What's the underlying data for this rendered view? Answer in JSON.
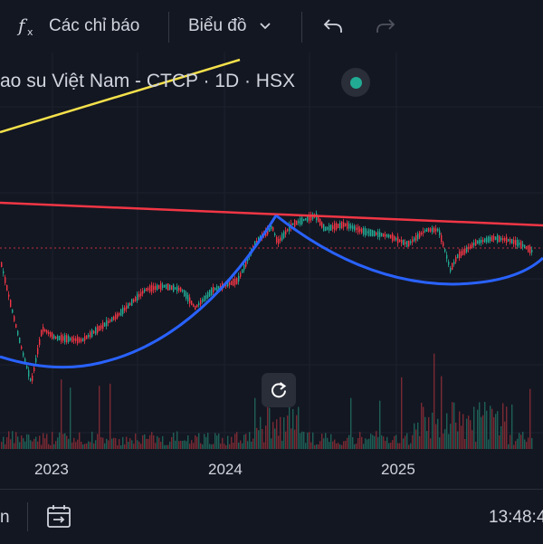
{
  "toolbar": {
    "indicators_icon": "fx-icon",
    "indicators_label": "Các chỉ báo",
    "chart_type_label": "Biểu đồ",
    "undo_icon": "undo-icon",
    "redo_icon": "redo-icon"
  },
  "symbol": {
    "title": "ao su Việt Nam - CTCP · 1D · HSX",
    "status_color": "#22ab94"
  },
  "chart_data": {
    "type": "candlestick",
    "x_tick_labels": [
      "2023",
      "2024",
      "2025"
    ],
    "overlays": [
      {
        "name": "",
        "color": "#f5e14b",
        "kind": "trendline"
      },
      {
        "name": "",
        "color": "#f23645",
        "kind": "trendline"
      },
      {
        "name": "",
        "color": "#2962ff",
        "kind": "curve"
      }
    ],
    "current_price_line_color": "#f23645",
    "up_color": "#22ab94",
    "down_color": "#f23645"
  },
  "bottom": {
    "left_text": "n",
    "date_range_icon": "calendar-arrow-icon",
    "time": "13:48:4"
  }
}
